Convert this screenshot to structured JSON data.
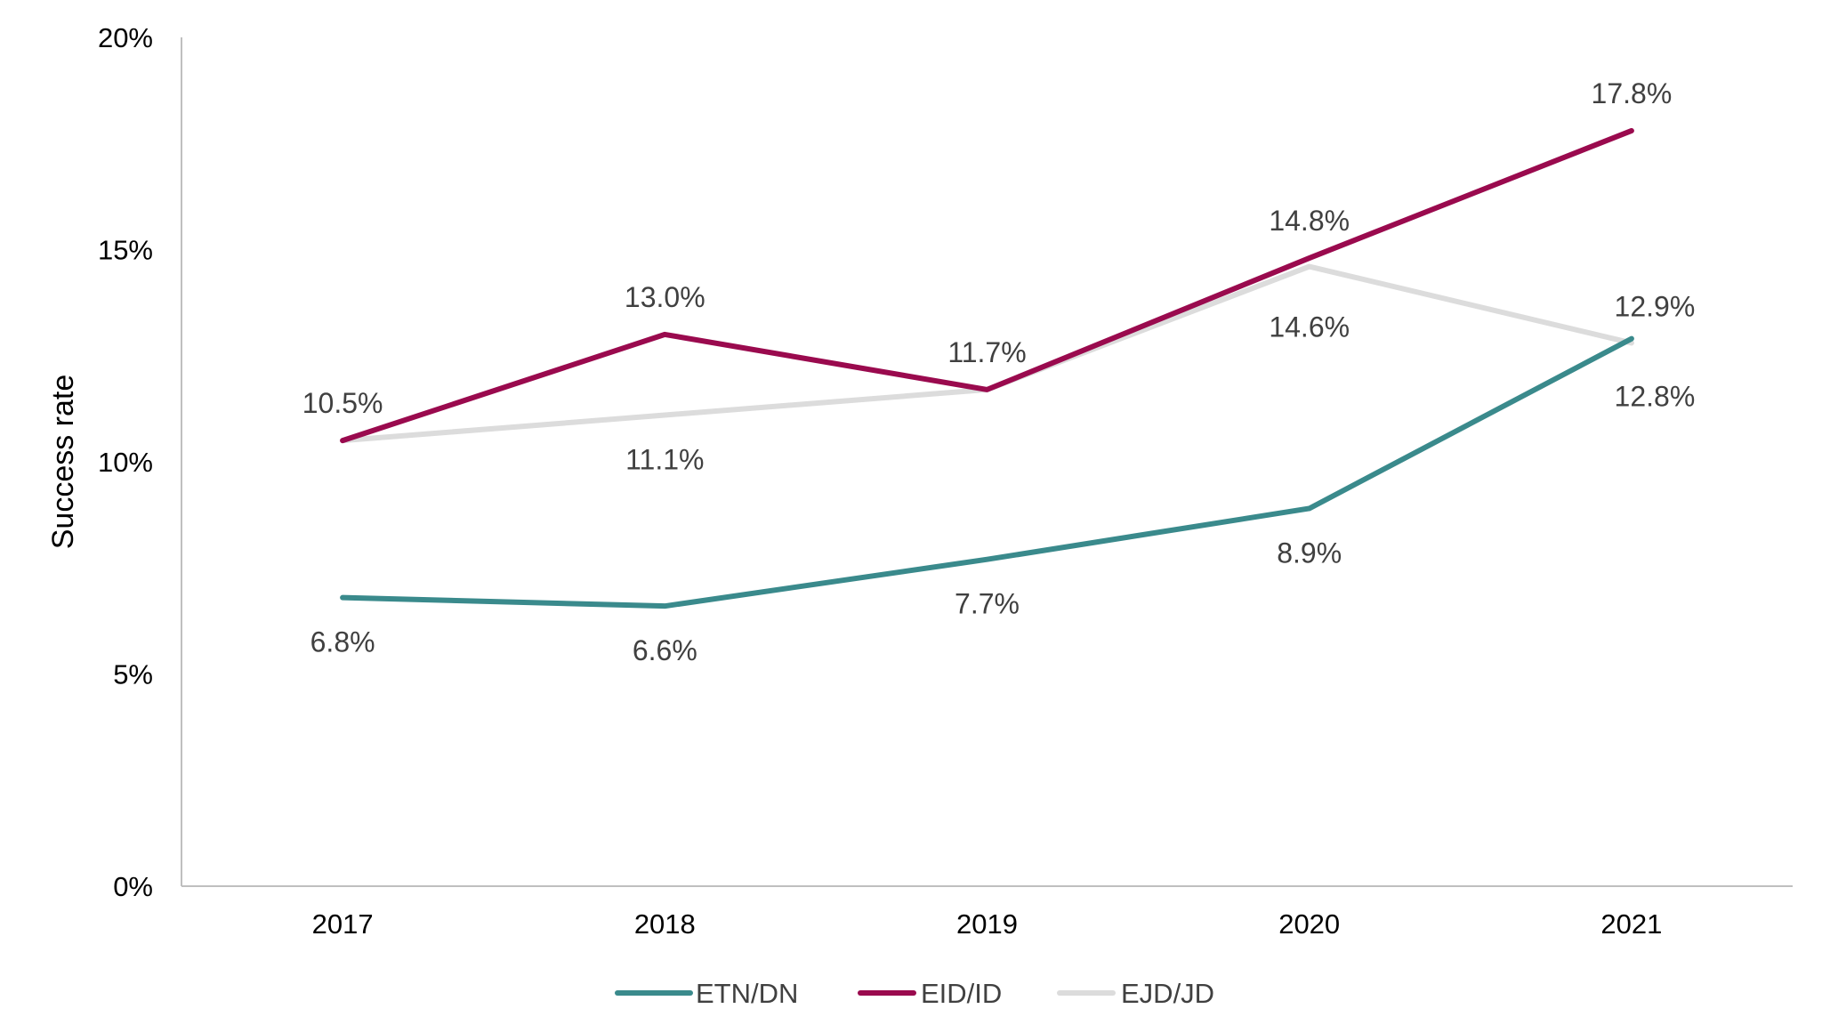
{
  "chart_data": {
    "type": "line",
    "categories": [
      "2017",
      "2018",
      "2019",
      "2020",
      "2021"
    ],
    "series": [
      {
        "name": "ETN/DN",
        "color": "#3a8a8c",
        "values": [
          6.8,
          6.6,
          7.7,
          8.9,
          12.9
        ],
        "labels": [
          "6.8%",
          "6.6%",
          "7.7%",
          "8.9%",
          "12.9%"
        ]
      },
      {
        "name": "EID/ID",
        "color": "#9a0a4e",
        "values": [
          10.5,
          13.0,
          11.7,
          14.8,
          17.8
        ],
        "labels": [
          "10.5%",
          "13.0%",
          "11.7%",
          "14.8%",
          "17.8%"
        ]
      },
      {
        "name": "EJD/JD",
        "color": "#dcdcdc",
        "values": [
          10.5,
          11.1,
          11.7,
          14.6,
          12.8
        ],
        "labels": [
          "",
          "11.1%",
          "",
          "14.6%",
          "12.8%"
        ]
      }
    ],
    "ylabel": "Success rate",
    "ylim": [
      0,
      20
    ],
    "yticks": [
      "0%",
      "5%",
      "10%",
      "15%",
      "20%"
    ],
    "grid": false,
    "legend_position": "bottom"
  }
}
